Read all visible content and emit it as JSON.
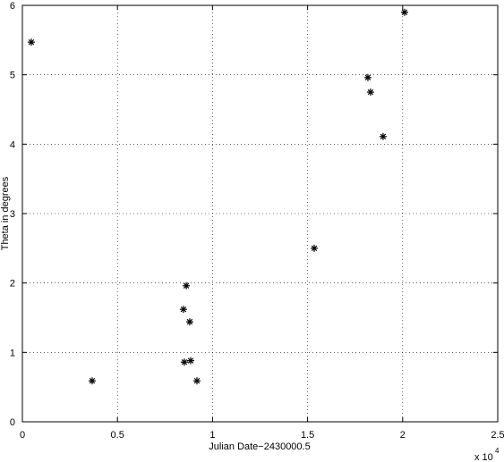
{
  "chart_data": {
    "type": "scatter",
    "x_label": "Julian Date−2430000.5",
    "y_label": "Theta in degrees",
    "x_scale_label": "x 10",
    "x_scale_exponent": "4",
    "series": [
      {
        "color": "#000000",
        "x": [
          0.047,
          0.367,
          0.862,
          0.847,
          0.88,
          0.852,
          0.885,
          0.918,
          1.535,
          1.817,
          1.831,
          1.897,
          2.01
        ],
        "values": [
          5.47,
          0.59,
          1.96,
          1.62,
          1.44,
          0.86,
          0.88,
          0.59,
          2.5,
          4.96,
          4.75,
          4.11,
          5.9
        ]
      }
    ],
    "xlim": [
      0,
      2.5
    ],
    "xticks": [
      0,
      0.5,
      1,
      1.5,
      2,
      2.5
    ],
    "ylim": [
      0,
      6
    ],
    "yticks": [
      0,
      1,
      2,
      3,
      4,
      5,
      6
    ],
    "grid": true
  }
}
